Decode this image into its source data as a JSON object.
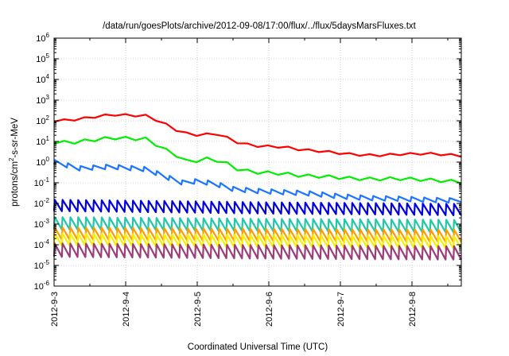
{
  "chart_data": {
    "type": "line",
    "title": "/data/run/goesPlots/archive/2012-09-08/17:00/flux/../flux/5daysMarsFluxes.txt",
    "xlabel": "Coordinated Universal Time (UTC)",
    "ylabel_base": "protons/cm",
    "ylabel_exp": "2",
    "ylabel_tail": "-s-sr-MeV",
    "x_ticks": [
      "2012-9-3",
      "2012-9-4",
      "2012-9-5",
      "2012-9-6",
      "2012-9-7",
      "2012-9-8"
    ],
    "y_ticks": [
      {
        "base": "10",
        "exp": "-6"
      },
      {
        "base": "10",
        "exp": "-5"
      },
      {
        "base": "10",
        "exp": "-4"
      },
      {
        "base": "10",
        "exp": "-3"
      },
      {
        "base": "10",
        "exp": "-2"
      },
      {
        "base": "10",
        "exp": "-1"
      },
      {
        "base": "10",
        "exp": "0"
      },
      {
        "base": "10",
        "exp": "1"
      },
      {
        "base": "10",
        "exp": "2"
      },
      {
        "base": "10",
        "exp": "3"
      },
      {
        "base": "10",
        "exp": "4"
      },
      {
        "base": "10",
        "exp": "5"
      },
      {
        "base": "10",
        "exp": "6"
      }
    ],
    "xlim": [
      "2012-09-03",
      "2012-09-08T17:00"
    ],
    "ylim_log10": [
      -6,
      6
    ],
    "y_scale": "log",
    "grid": true,
    "legend": "none",
    "series": [
      {
        "color": "#ff0000",
        "sawtooth_amp_log10": 0.1,
        "cycles": 0,
        "points": [
          [
            0,
            100
          ],
          [
            0.25,
            110
          ],
          [
            0.8,
            200
          ],
          [
            1.1,
            180
          ],
          [
            1.3,
            175
          ],
          [
            1.55,
            70
          ],
          [
            1.75,
            30
          ],
          [
            1.9,
            22
          ],
          [
            2.05,
            20
          ],
          [
            2.25,
            25
          ],
          [
            2.4,
            16
          ],
          [
            2.6,
            8
          ],
          [
            2.85,
            6
          ],
          [
            3.2,
            5.5
          ],
          [
            3.45,
            4
          ],
          [
            3.8,
            3.2
          ],
          [
            4.2,
            2.3
          ],
          [
            4.5,
            2.1
          ],
          [
            4.8,
            2.4
          ],
          [
            5.2,
            2.6
          ],
          [
            5.5,
            2.3
          ],
          [
            5.7,
            2.0
          ]
        ]
      },
      {
        "color": "#00ee00",
        "sawtooth_amp_log10": 0.15,
        "cycles": 0,
        "points": [
          [
            0,
            9
          ],
          [
            0.25,
            9
          ],
          [
            0.8,
            15
          ],
          [
            1.3,
            13
          ],
          [
            1.55,
            4
          ],
          [
            1.8,
            1.5
          ],
          [
            1.9,
            0.8
          ],
          [
            2.05,
            1.5
          ],
          [
            2.25,
            1.3
          ],
          [
            2.4,
            0.9
          ],
          [
            2.6,
            0.4
          ],
          [
            2.85,
            0.32
          ],
          [
            3.2,
            0.28
          ],
          [
            3.45,
            0.22
          ],
          [
            3.8,
            0.2
          ],
          [
            4.2,
            0.16
          ],
          [
            4.5,
            0.15
          ],
          [
            4.8,
            0.16
          ],
          [
            5.2,
            0.14
          ],
          [
            5.5,
            0.12
          ],
          [
            5.7,
            0.11
          ]
        ]
      },
      {
        "color": "#1a75ff",
        "sawtooth_amp_log10": 0.22,
        "cycles": 32,
        "points": [
          [
            0,
            1
          ],
          [
            0.35,
            0.5
          ],
          [
            0.8,
            0.6
          ],
          [
            1.3,
            0.45
          ],
          [
            1.55,
            0.2
          ],
          [
            1.8,
            0.1
          ],
          [
            2.0,
            0.12
          ],
          [
            2.25,
            0.09
          ],
          [
            2.5,
            0.05
          ],
          [
            2.85,
            0.04
          ],
          [
            3.2,
            0.035
          ],
          [
            3.6,
            0.03
          ],
          [
            4.0,
            0.022
          ],
          [
            4.4,
            0.018
          ],
          [
            4.8,
            0.017
          ],
          [
            5.2,
            0.015
          ],
          [
            5.5,
            0.014
          ],
          [
            5.7,
            0.015
          ]
        ]
      },
      {
        "color": "#0000dd",
        "sawtooth_amp_log10": 0.55,
        "cycles": 52,
        "points": [
          [
            0,
            0.008
          ],
          [
            1.5,
            0.007
          ],
          [
            3.0,
            0.006
          ],
          [
            4.5,
            0.0055
          ],
          [
            5.7,
            0.005
          ]
        ]
      },
      {
        "color": "#20c7a8",
        "sawtooth_amp_log10": 0.6,
        "cycles": 52,
        "points": [
          [
            0,
            0.0011
          ],
          [
            1.5,
            0.001
          ],
          [
            3.0,
            0.0009
          ],
          [
            4.5,
            0.00085
          ],
          [
            5.7,
            0.0008
          ]
        ]
      },
      {
        "color": "#ff9a00",
        "sawtooth_amp_log10": 0.6,
        "cycles": 52,
        "points": [
          [
            0,
            0.00035
          ],
          [
            1.5,
            0.00032
          ],
          [
            3.0,
            0.0003
          ],
          [
            4.5,
            0.00028
          ],
          [
            5.7,
            0.00027
          ]
        ]
      },
      {
        "color": "#f5f000",
        "sawtooth_amp_log10": 0.6,
        "cycles": 52,
        "points": [
          [
            0,
            0.00018
          ],
          [
            1.5,
            0.00016
          ],
          [
            3.0,
            0.00015
          ],
          [
            4.5,
            0.00014
          ],
          [
            5.7,
            0.00013
          ]
        ]
      },
      {
        "color": "#9c3c78",
        "sawtooth_amp_log10": 0.65,
        "cycles": 52,
        "points": [
          [
            0,
            5.5e-05
          ],
          [
            1.5,
            5e-05
          ],
          [
            3.0,
            4.5e-05
          ],
          [
            4.5,
            4.2e-05
          ],
          [
            5.7,
            4e-05
          ]
        ]
      }
    ]
  }
}
